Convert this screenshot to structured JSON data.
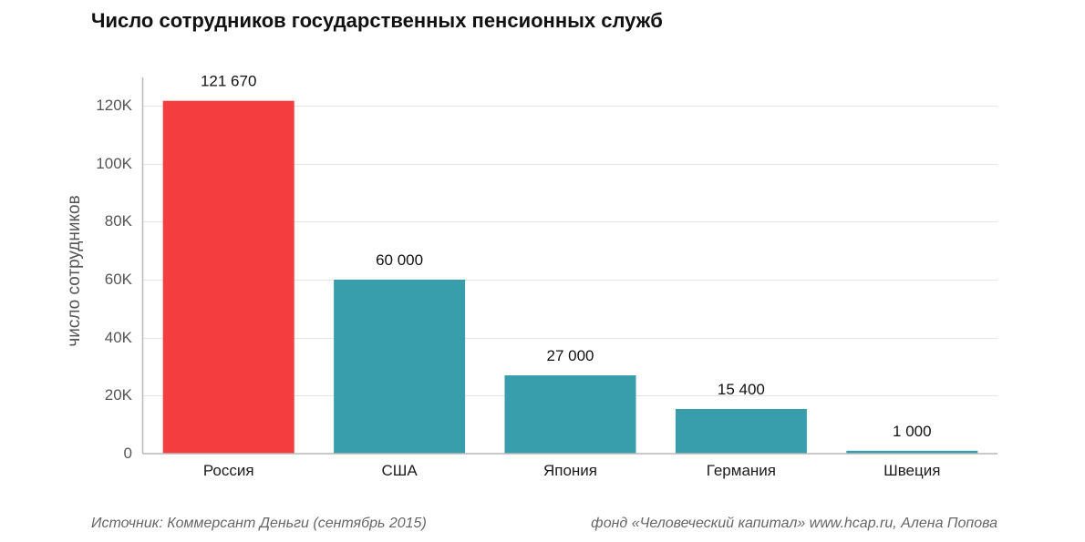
{
  "chart_data": {
    "type": "bar",
    "title": "Число сотрудников государственных пенсионных служб",
    "xlabel": "",
    "ylabel": "число сотрудников",
    "ylim": [
      0,
      130000
    ],
    "yticks": [
      0,
      20000,
      40000,
      60000,
      80000,
      100000,
      120000
    ],
    "ytick_labels": [
      "0",
      "20K",
      "40K",
      "60K",
      "80K",
      "100K",
      "120K"
    ],
    "grid": true,
    "categories": [
      "Россия",
      "США",
      "Япония",
      "Германия",
      "Швеция"
    ],
    "values": [
      121670,
      60000,
      27000,
      15400,
      1000
    ],
    "value_labels": [
      "121 670",
      "60 000",
      "27 000",
      "15 400",
      "1 000"
    ],
    "colors": [
      "#f43d3f",
      "#389eab",
      "#389eab",
      "#389eab",
      "#389eab"
    ]
  },
  "footer": {
    "source": "Источник: Коммерсант Деньги (сентябрь 2015)",
    "credit": "фонд «Человеческий капитал» www.hcap.ru, Алена Попова"
  }
}
